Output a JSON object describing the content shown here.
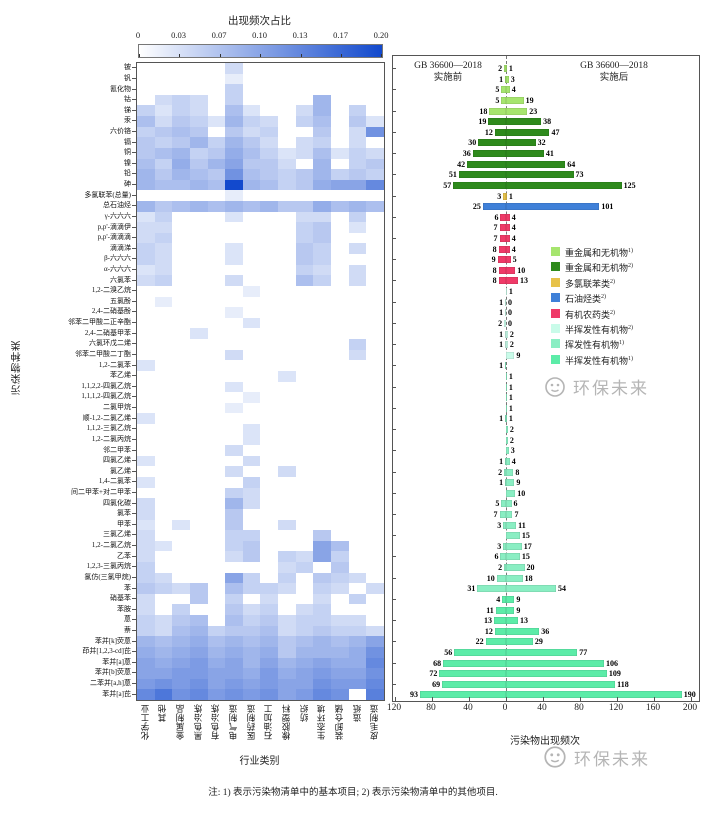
{
  "chart_data": [
    {
      "type": "heatmap",
      "title": "出现频次占比",
      "xlabel": "行业类别",
      "ylabel": "污染物种类",
      "colorbar": {
        "ticks": [
          "0",
          "0.03",
          "0.07",
          "0.10",
          "0.13",
          "0.17",
          "0.20"
        ],
        "min": 0,
        "max": 0.2,
        "min_color": "#ffffff",
        "max_color": "#1249cd"
      },
      "columns": [
        "化学工业",
        "其他",
        "金属制品",
        "黑色冶炼",
        "有色冶炼",
        "电气制造",
        "医药制造",
        "石油加工",
        "橡胶塑料",
        "纺织",
        "生态环境",
        "装卸仓储",
        "造纸",
        "皮毛制造"
      ],
      "rows": [
        "铍",
        "钒",
        "氰化物",
        "钴",
        "锑",
        "汞",
        "六价铬",
        "镉",
        "铜",
        "镍",
        "铅",
        "砷",
        "多氯联苯(总量)",
        "总石油烃",
        "γ-六六六",
        "p,p'-滴滴伊",
        "p,p'-滴滴滴",
        "滴滴涕",
        "β-六六六",
        "α-六六六",
        "六氯苯",
        "1,2-二溴乙烷",
        "五氯酚",
        "2,4-二硝基酚",
        "邻苯二甲酸二正辛酯",
        "2,4-二硝基甲苯",
        "六氯环戊二烯",
        "邻苯二甲酸二丁酯",
        "1,2-二氯苯",
        "苯乙烯",
        "1,1,2,2-四氯乙烷",
        "1,1,1,2-四氯乙烷",
        "二氯甲烷",
        "顺-1,2-二氯乙烯",
        "1,1,2-三氯乙烷",
        "1,2-二氯丙烷",
        "邻二甲苯",
        "四氯乙烯",
        "氯乙烯",
        "1,4-二氯苯",
        "间二甲苯+对二甲苯",
        "四氯化碳",
        "氯苯",
        "甲苯",
        "三氯乙烯",
        "1,2-二氯乙烷",
        "乙苯",
        "1,2,3-三氯丙烷",
        "氯仿(三氯甲烷)",
        "苯",
        "硝基苯",
        "苯胺",
        "蒽",
        "萘",
        "苯并[k]荧蒽",
        "茚并[1,2,3-cd]芘",
        "苯并[a]蒽",
        "苯并[b]荧蒽",
        "二苯并[a,h]蒽",
        "苯并[a]芘"
      ],
      "values": [
        [
          0,
          0,
          0,
          0,
          0,
          0.04,
          0,
          0,
          0,
          0,
          0,
          0,
          0,
          0
        ],
        [
          0,
          0,
          0,
          0,
          0,
          0.02,
          0,
          0,
          0,
          0,
          0,
          0,
          0,
          0
        ],
        [
          0,
          0,
          0,
          0,
          0,
          0.05,
          0,
          0,
          0,
          0,
          0,
          0,
          0,
          0
        ],
        [
          0,
          0.04,
          0.05,
          0.04,
          0,
          0.05,
          0,
          0,
          0,
          0,
          0.08,
          0,
          0,
          0
        ],
        [
          0.05,
          0.03,
          0.05,
          0.04,
          0,
          0.07,
          0.03,
          0,
          0,
          0.04,
          0.08,
          0,
          0.05,
          0
        ],
        [
          0.07,
          0.04,
          0.06,
          0.05,
          0.03,
          0.08,
          0.05,
          0.04,
          0,
          0.05,
          0.07,
          0,
          0.06,
          0.03
        ],
        [
          0.05,
          0.06,
          0.07,
          0.06,
          0,
          0.06,
          0.04,
          0.05,
          0,
          0,
          0.06,
          0,
          0.04,
          0.12
        ],
        [
          0.06,
          0.05,
          0.06,
          0.08,
          0.05,
          0.08,
          0.06,
          0.04,
          0,
          0.04,
          0.05,
          0,
          0.04,
          0
        ],
        [
          0.06,
          0.07,
          0.08,
          0.05,
          0.06,
          0.09,
          0.07,
          0.05,
          0.03,
          0.04,
          0.07,
          0.03,
          0.05,
          0.04
        ],
        [
          0.07,
          0.05,
          0.09,
          0.06,
          0.08,
          0.1,
          0.06,
          0.06,
          0.04,
          0,
          0.08,
          0,
          0.05,
          0.06
        ],
        [
          0.08,
          0.06,
          0.08,
          0.07,
          0.06,
          0.12,
          0.07,
          0.06,
          0.05,
          0.06,
          0.08,
          0.05,
          0.06,
          0.05
        ],
        [
          0.08,
          0.07,
          0.07,
          0.08,
          0.07,
          0.2,
          0.08,
          0.07,
          0.05,
          0.06,
          0.09,
          0.1,
          0.1,
          0.13
        ],
        [
          0,
          0,
          0,
          0,
          0,
          0.02,
          0,
          0,
          0,
          0,
          0,
          0,
          0,
          0
        ],
        [
          0.08,
          0.06,
          0.07,
          0.08,
          0.07,
          0.08,
          0.07,
          0.08,
          0.06,
          0.06,
          0.09,
          0.07,
          0.08,
          0.07
        ],
        [
          0.03,
          0.05,
          0,
          0,
          0,
          0.03,
          0,
          0,
          0,
          0.04,
          0.04,
          0,
          0.05,
          0
        ],
        [
          0.04,
          0.04,
          0,
          0,
          0,
          0,
          0,
          0,
          0,
          0.05,
          0.06,
          0,
          0.03,
          0
        ],
        [
          0.04,
          0.05,
          0,
          0,
          0,
          0,
          0,
          0,
          0,
          0.05,
          0.06,
          0,
          0,
          0
        ],
        [
          0.05,
          0.04,
          0,
          0,
          0,
          0.03,
          0,
          0,
          0,
          0.06,
          0.05,
          0,
          0.04,
          0
        ],
        [
          0.05,
          0.04,
          0,
          0,
          0,
          0.03,
          0,
          0,
          0,
          0.06,
          0.05,
          0,
          0,
          0
        ],
        [
          0.03,
          0.04,
          0,
          0,
          0,
          0,
          0,
          0,
          0,
          0.05,
          0.04,
          0,
          0.04,
          0
        ],
        [
          0.04,
          0.05,
          0,
          0,
          0,
          0.04,
          0,
          0,
          0,
          0.07,
          0.05,
          0,
          0.04,
          0
        ],
        [
          0,
          0,
          0,
          0,
          0,
          0,
          0.02,
          0,
          0,
          0,
          0,
          0,
          0,
          0
        ],
        [
          0,
          0.02,
          0,
          0,
          0,
          0,
          0,
          0,
          0,
          0,
          0,
          0,
          0,
          0
        ],
        [
          0,
          0,
          0,
          0,
          0,
          0.02,
          0,
          0,
          0,
          0,
          0,
          0,
          0,
          0
        ],
        [
          0,
          0,
          0,
          0,
          0,
          0,
          0.03,
          0,
          0,
          0,
          0,
          0,
          0,
          0
        ],
        [
          0,
          0,
          0,
          0.03,
          0,
          0,
          0,
          0,
          0,
          0,
          0,
          0,
          0,
          0
        ],
        [
          0,
          0,
          0,
          0,
          0,
          0,
          0,
          0,
          0,
          0,
          0,
          0,
          0.05,
          0
        ],
        [
          0,
          0,
          0,
          0,
          0,
          0.04,
          0,
          0,
          0,
          0,
          0,
          0,
          0.04,
          0
        ],
        [
          0.03,
          0,
          0,
          0,
          0,
          0,
          0,
          0,
          0,
          0,
          0,
          0,
          0,
          0
        ],
        [
          0,
          0,
          0,
          0,
          0,
          0,
          0,
          0,
          0.03,
          0,
          0,
          0,
          0,
          0
        ],
        [
          0,
          0,
          0,
          0,
          0,
          0.03,
          0,
          0,
          0,
          0,
          0,
          0,
          0,
          0
        ],
        [
          0,
          0,
          0,
          0,
          0,
          0,
          0.02,
          0,
          0,
          0,
          0,
          0,
          0,
          0
        ],
        [
          0,
          0,
          0,
          0,
          0,
          0.02,
          0,
          0,
          0,
          0,
          0,
          0,
          0,
          0
        ],
        [
          0.03,
          0,
          0,
          0,
          0,
          0,
          0,
          0,
          0,
          0,
          0,
          0,
          0,
          0
        ],
        [
          0,
          0,
          0,
          0,
          0,
          0,
          0.03,
          0,
          0,
          0,
          0,
          0,
          0,
          0
        ],
        [
          0,
          0,
          0,
          0,
          0,
          0,
          0.03,
          0,
          0,
          0,
          0,
          0,
          0,
          0
        ],
        [
          0,
          0,
          0,
          0,
          0,
          0.04,
          0,
          0,
          0,
          0,
          0,
          0,
          0,
          0
        ],
        [
          0.03,
          0,
          0,
          0,
          0,
          0,
          0.04,
          0,
          0,
          0,
          0,
          0,
          0,
          0
        ],
        [
          0,
          0,
          0,
          0,
          0,
          0.04,
          0,
          0,
          0.04,
          0,
          0,
          0,
          0,
          0
        ],
        [
          0.03,
          0,
          0,
          0,
          0,
          0,
          0.05,
          0,
          0,
          0,
          0,
          0,
          0,
          0
        ],
        [
          0,
          0,
          0,
          0,
          0,
          0.05,
          0.04,
          0,
          0,
          0,
          0,
          0,
          0,
          0
        ],
        [
          0.04,
          0,
          0,
          0,
          0,
          0.08,
          0.04,
          0,
          0,
          0,
          0,
          0,
          0,
          0
        ],
        [
          0.04,
          0,
          0,
          0,
          0,
          0.06,
          0,
          0,
          0,
          0,
          0,
          0,
          0,
          0
        ],
        [
          0.03,
          0,
          0.03,
          0,
          0,
          0.06,
          0,
          0,
          0.04,
          0,
          0,
          0,
          0,
          0
        ],
        [
          0.04,
          0,
          0,
          0,
          0,
          0.05,
          0.05,
          0,
          0,
          0,
          0.06,
          0,
          0,
          0
        ],
        [
          0.04,
          0.03,
          0,
          0,
          0,
          0.05,
          0.06,
          0,
          0,
          0,
          0.1,
          0.07,
          0,
          0
        ],
        [
          0.04,
          0,
          0,
          0,
          0,
          0.04,
          0.06,
          0,
          0.05,
          0.04,
          0.1,
          0.05,
          0,
          0
        ],
        [
          0.05,
          0,
          0,
          0,
          0,
          0,
          0,
          0,
          0.04,
          0.05,
          0,
          0.06,
          0,
          0
        ],
        [
          0.05,
          0.04,
          0,
          0,
          0,
          0.1,
          0.05,
          0,
          0.05,
          0,
          0.06,
          0.05,
          0.04,
          0
        ],
        [
          0.06,
          0.05,
          0.04,
          0.06,
          0,
          0.07,
          0.05,
          0.05,
          0.04,
          0,
          0.05,
          0.04,
          0,
          0.04
        ],
        [
          0.04,
          0,
          0,
          0.06,
          0,
          0.05,
          0,
          0.04,
          0,
          0,
          0.04,
          0,
          0.05,
          0
        ],
        [
          0.04,
          0,
          0.05,
          0,
          0,
          0.06,
          0.04,
          0.05,
          0,
          0.04,
          0.05,
          0,
          0,
          0
        ],
        [
          0.05,
          0.04,
          0.06,
          0.07,
          0,
          0.07,
          0.05,
          0.06,
          0.04,
          0.05,
          0.05,
          0.04,
          0.04,
          0
        ],
        [
          0.05,
          0.04,
          0.07,
          0.08,
          0.05,
          0.06,
          0.06,
          0.07,
          0.04,
          0.05,
          0.06,
          0.05,
          0.05,
          0.04
        ],
        [
          0.08,
          0.07,
          0.08,
          0.09,
          0.07,
          0.08,
          0.07,
          0.08,
          0.06,
          0.07,
          0.08,
          0.07,
          0.08,
          0.1
        ],
        [
          0.09,
          0.08,
          0.09,
          0.1,
          0.08,
          0.09,
          0.08,
          0.09,
          0.06,
          0.08,
          0.08,
          0.08,
          0.09,
          0.12
        ],
        [
          0.1,
          0.09,
          0.1,
          0.11,
          0.09,
          0.1,
          0.08,
          0.1,
          0.08,
          0.09,
          0.1,
          0.09,
          0.09,
          0.13
        ],
        [
          0.1,
          0.1,
          0.11,
          0.11,
          0.1,
          0.1,
          0.09,
          0.11,
          0.09,
          0.1,
          0.11,
          0.1,
          0.1,
          0.12
        ],
        [
          0.11,
          0.12,
          0.11,
          0.12,
          0.1,
          0.11,
          0.1,
          0.11,
          0.1,
          0.1,
          0.12,
          0.11,
          0.11,
          0.13
        ],
        [
          0.13,
          0.15,
          0.12,
          0.13,
          0.11,
          0.12,
          0.11,
          0.12,
          0.1,
          0.11,
          0.13,
          0.12,
          0,
          0.14
        ]
      ]
    },
    {
      "type": "bar",
      "orientation": "diverging-horizontal",
      "left_header": [
        "GB 36600—2018",
        "实施前"
      ],
      "right_header": [
        "GB 36600—2018",
        "实施后"
      ],
      "xlabel": "污染物出现频次",
      "x_ticks": {
        "labels": [
          "120",
          "80",
          "40",
          "0",
          "40",
          "80",
          "120",
          "160",
          "200"
        ],
        "values": [
          -120,
          -80,
          -40,
          0,
          40,
          80,
          120,
          160,
          200
        ]
      },
      "legend": [
        {
          "label": "重金属和无机物",
          "sup": "1)",
          "color": "#a6e56e"
        },
        {
          "label": "重金属和无机物",
          "sup": "2)",
          "color": "#2e8a1c"
        },
        {
          "label": "多氯联苯类",
          "sup": "2)",
          "color": "#e7c24a"
        },
        {
          "label": "石油烃类",
          "sup": "2)",
          "color": "#3f80d8"
        },
        {
          "label": "有机农药类",
          "sup": "2)",
          "color": "#ef3a68"
        },
        {
          "label": "半挥发性有机物",
          "sup": "2)",
          "color": "#c9fbe9"
        },
        {
          "label": "挥发性有机物",
          "sup": "1)",
          "color": "#8aeec3"
        },
        {
          "label": "半挥发性有机物",
          "sup": "1)",
          "color": "#5ceca8"
        }
      ],
      "series": [
        {
          "name": "实施前",
          "values": [
            2,
            1,
            5,
            5,
            18,
            19,
            12,
            30,
            36,
            42,
            51,
            57,
            3,
            25,
            6,
            7,
            7,
            8,
            9,
            8,
            8,
            null,
            1,
            1,
            2,
            1,
            1,
            null,
            1,
            null,
            null,
            null,
            null,
            1,
            null,
            null,
            null,
            1,
            2,
            1,
            null,
            5,
            7,
            3,
            null,
            3,
            6,
            2,
            10,
            31,
            4,
            11,
            13,
            12,
            22,
            56,
            68,
            72,
            69,
            93
          ]
        },
        {
          "name": "实施后",
          "values": [
            1,
            3,
            4,
            19,
            23,
            38,
            47,
            32,
            41,
            64,
            73,
            125,
            1,
            101,
            4,
            4,
            4,
            4,
            5,
            10,
            13,
            1,
            0,
            0,
            0,
            2,
            2,
            9,
            null,
            1,
            1,
            1,
            1,
            1,
            2,
            2,
            3,
            4,
            8,
            9,
            10,
            6,
            7,
            11,
            15,
            17,
            15,
            20,
            18,
            54,
            9,
            9,
            13,
            36,
            29,
            77,
            106,
            109,
            118,
            190
          ]
        }
      ],
      "row_category": [
        0,
        0,
        0,
        0,
        0,
        1,
        1,
        1,
        1,
        1,
        1,
        1,
        2,
        3,
        4,
        4,
        4,
        4,
        4,
        4,
        4,
        5,
        5,
        5,
        5,
        5,
        5,
        5,
        6,
        6,
        6,
        6,
        6,
        6,
        6,
        6,
        6,
        6,
        6,
        6,
        6,
        6,
        6,
        6,
        6,
        6,
        6,
        6,
        6,
        6,
        7,
        7,
        7,
        7,
        7,
        7,
        7,
        7,
        7,
        7
      ]
    }
  ],
  "watermark": "环保未来",
  "note": "注: 1) 表示污染物清单中的基本项目; 2) 表示污染物清单中的其他项目."
}
